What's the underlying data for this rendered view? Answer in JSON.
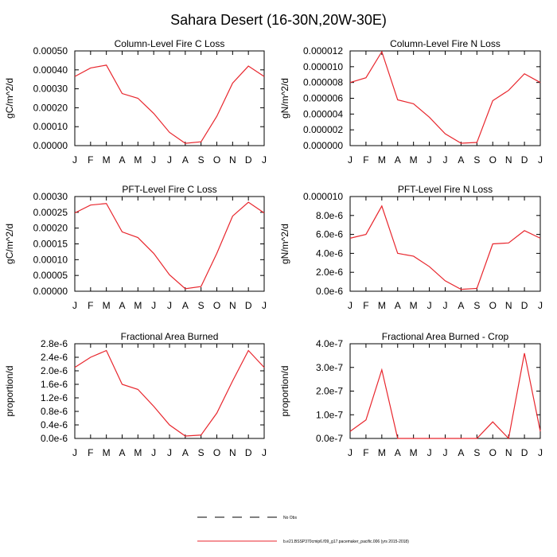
{
  "figure": {
    "title": "Sahara Desert (16-30N,20W-30E)",
    "line_color": "#e8262d",
    "legend": {
      "obs_label": "No Obs",
      "model_label": "b.e21.BSSP370cmip6.f09_g17.pacemaker_pacific.006 (yrs 2015-2018)"
    }
  },
  "chart_data": [
    {
      "type": "line",
      "title": "Column-Level Fire C Loss",
      "ylabel": "gC/m^2/d",
      "categories": [
        "J",
        "F",
        "M",
        "A",
        "M",
        "J",
        "J",
        "A",
        "S",
        "O",
        "N",
        "D",
        "J"
      ],
      "values": [
        0.000365,
        0.00041,
        0.000425,
        0.000275,
        0.00025,
        0.00017,
        7e-05,
        1.2e-05,
        2e-05,
        0.000155,
        0.00033,
        0.00042,
        0.000365
      ],
      "ylim": [
        0,
        0.0005
      ],
      "yticks": [
        0,
        0.0001,
        0.0002,
        0.0003,
        0.0004,
        0.0005
      ],
      "yticklabels": [
        "0.00000",
        "0.00010",
        "0.00020",
        "0.00030",
        "0.00040",
        "0.00050"
      ]
    },
    {
      "type": "line",
      "title": "Column-Level Fire N Loss",
      "ylabel": "gN/m^2/d",
      "categories": [
        "J",
        "F",
        "M",
        "A",
        "M",
        "J",
        "J",
        "A",
        "S",
        "O",
        "N",
        "D",
        "J"
      ],
      "values": [
        8e-06,
        8.6e-06,
        1.19e-05,
        5.8e-06,
        5.3e-06,
        3.6e-06,
        1.5e-06,
        3e-07,
        4e-07,
        5.7e-06,
        7e-06,
        9.1e-06,
        8e-06
      ],
      "ylim": [
        0,
        1.2e-05
      ],
      "yticks": [
        0,
        2e-06,
        4e-06,
        6e-06,
        8e-06,
        1e-05,
        1.2e-05
      ],
      "yticklabels": [
        "0.000000",
        "0.000002",
        "0.000004",
        "0.000006",
        "0.000008",
        "0.000010",
        "0.000012"
      ]
    },
    {
      "type": "line",
      "title": "PFT-Level Fire C Loss",
      "ylabel": "gC/m^2/d",
      "categories": [
        "J",
        "F",
        "M",
        "A",
        "M",
        "J",
        "J",
        "A",
        "S",
        "O",
        "N",
        "D",
        "J"
      ],
      "values": [
        0.000248,
        0.000273,
        0.000278,
        0.000188,
        0.00017,
        0.00012,
        5.2e-05,
        8e-06,
        1.5e-05,
        0.00012,
        0.000238,
        0.000282,
        0.000248
      ],
      "ylim": [
        0,
        0.0003
      ],
      "yticks": [
        0,
        5e-05,
        0.0001,
        0.00015,
        0.0002,
        0.00025,
        0.0003
      ],
      "yticklabels": [
        "0.00000",
        "0.00005",
        "0.00010",
        "0.00015",
        "0.00020",
        "0.00025",
        "0.00030"
      ]
    },
    {
      "type": "line",
      "title": "PFT-Level Fire N Loss",
      "ylabel": "gN/m^2/d",
      "categories": [
        "J",
        "F",
        "M",
        "A",
        "M",
        "J",
        "J",
        "A",
        "S",
        "O",
        "N",
        "D",
        "J"
      ],
      "values": [
        5.6e-06,
        6e-06,
        9e-06,
        4e-06,
        3.7e-06,
        2.6e-06,
        1.1e-06,
        2e-07,
        3e-07,
        5e-06,
        5.1e-06,
        6.4e-06,
        5.6e-06
      ],
      "ylim": [
        0,
        1e-05
      ],
      "yticks": [
        0,
        2e-06,
        4e-06,
        6e-06,
        8e-06,
        1e-05
      ],
      "yticklabels": [
        "0.0e-6",
        "2.0e-6",
        "4.0e-6",
        "6.0e-6",
        "8.0e-6",
        "0.000010"
      ]
    },
    {
      "type": "line",
      "title": "Fractional Area Burned",
      "ylabel": "proportion/d",
      "categories": [
        "J",
        "F",
        "M",
        "A",
        "M",
        "J",
        "J",
        "A",
        "S",
        "O",
        "N",
        "D",
        "J"
      ],
      "values": [
        2.1e-06,
        2.4e-06,
        2.6e-06,
        1.6e-06,
        1.45e-06,
        9.5e-07,
        4e-07,
        7e-08,
        1e-07,
        7.5e-07,
        1.7e-06,
        2.6e-06,
        2.1e-06
      ],
      "ylim": [
        0,
        2.8e-06
      ],
      "yticks": [
        0,
        4e-07,
        8e-07,
        1.2e-06,
        1.6e-06,
        2e-06,
        2.4e-06,
        2.8e-06
      ],
      "yticklabels": [
        "0.0e-6",
        "0.4e-6",
        "0.8e-6",
        "1.2e-6",
        "1.6e-6",
        "2.0e-6",
        "2.4e-6",
        "2.8e-6"
      ]
    },
    {
      "type": "line",
      "title": "Fractional Area Burned - Crop",
      "ylabel": "proportion/d",
      "categories": [
        "J",
        "F",
        "M",
        "A",
        "M",
        "J",
        "J",
        "A",
        "S",
        "O",
        "N",
        "D",
        "J"
      ],
      "values": [
        3e-08,
        7.8e-08,
        2.9e-07,
        0,
        0,
        0,
        0,
        0,
        0,
        7e-08,
        0,
        3.6e-07,
        3e-08
      ],
      "ylim": [
        0,
        4e-07
      ],
      "yticks": [
        0,
        1e-07,
        2e-07,
        3e-07,
        4e-07
      ],
      "yticklabels": [
        "0.0e-7",
        "1.0e-7",
        "2.0e-7",
        "3.0e-7",
        "4.0e-7"
      ]
    }
  ]
}
